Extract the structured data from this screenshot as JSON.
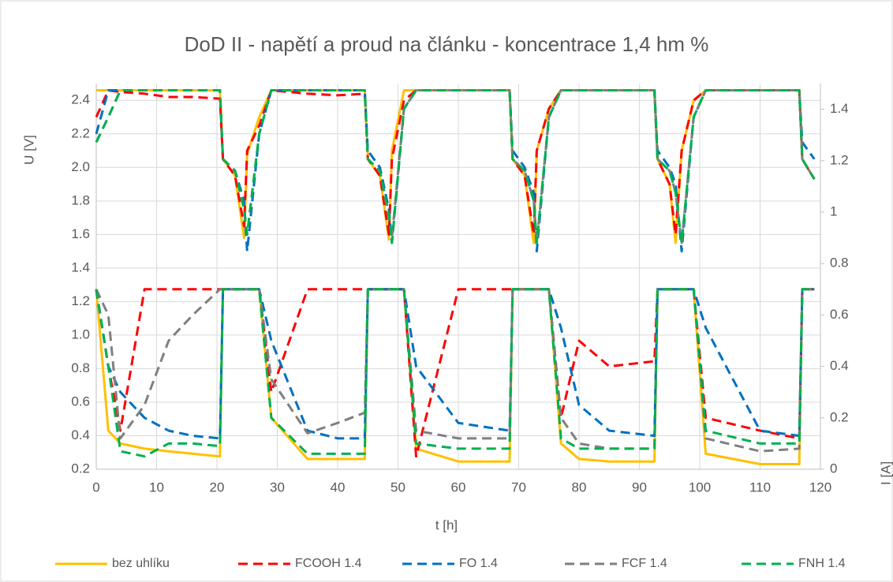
{
  "chart_data": {
    "type": "line",
    "title": "DoD II - napětí a proud na článku - koncentrace 1,4 hm %",
    "x_label": "t [h]",
    "y_label": "U [V]",
    "y2_label": "I [A]",
    "xlim": [
      0,
      120
    ],
    "xticks": [
      0,
      10,
      20,
      30,
      40,
      50,
      60,
      70,
      80,
      90,
      100,
      110,
      120
    ],
    "ylim": [
      0.2,
      2.5
    ],
    "yticks": [
      0.2,
      0.4,
      0.6,
      0.8,
      {
        "value": 1,
        "label": "1.0"
      },
      1.2,
      1.4,
      1.6,
      1.8,
      {
        "value": 2,
        "label": "2.0"
      },
      2.2,
      2.4
    ],
    "y2lim": [
      0,
      1.5
    ],
    "y2ticks": [
      0,
      0.2,
      0.4,
      0.6,
      0.8,
      1,
      1.2,
      1.4
    ],
    "grid": true,
    "legend": "bottom",
    "x": [
      0,
      2,
      4,
      8,
      12,
      16,
      20.5,
      21,
      23,
      24.5,
      25,
      27,
      29,
      35,
      40,
      44.5,
      45,
      47,
      48.5,
      49,
      51,
      53,
      60,
      68.5,
      69,
      71,
      72.5,
      73,
      75,
      77,
      80,
      85,
      92.5,
      93,
      95,
      96,
      97,
      99,
      101,
      110,
      116.5,
      117,
      119
    ],
    "series": [
      {
        "name": "bez uhlíku",
        "color": "#ffc000",
        "dashed": false,
        "values": [
          2.46,
          2.46,
          2.46,
          2.46,
          2.46,
          2.46,
          2.46,
          2.05,
          1.95,
          1.58,
          2.08,
          2.3,
          2.46,
          2.46,
          2.46,
          2.46,
          2.05,
          1.95,
          1.57,
          2.1,
          2.46,
          2.46,
          2.46,
          2.46,
          2.05,
          1.95,
          1.55,
          2.1,
          2.35,
          2.46,
          2.46,
          2.46,
          2.46,
          2.05,
          1.9,
          1.55,
          2.1,
          2.4,
          2.46,
          2.46,
          2.46,
          2.05,
          1.93
        ],
        "y2_values": [
          0.7,
          0.15,
          0.1,
          0.08,
          0.07,
          0.06,
          0.05,
          0.7,
          0.7,
          0.7,
          0.7,
          0.7,
          0.2,
          0.04,
          0.04,
          0.04,
          0.7,
          0.7,
          0.7,
          0.7,
          0.7,
          0.08,
          0.03,
          0.03,
          0.7,
          0.7,
          0.7,
          0.7,
          0.7,
          0.1,
          0.04,
          0.03,
          0.03,
          0.7,
          0.7,
          0.7,
          0.7,
          0.7,
          0.06,
          0.02,
          0.02,
          0.7,
          0.7
        ]
      },
      {
        "name": "FCOOH 1.4",
        "color": "#ff0000",
        "dashed": true,
        "values": [
          2.3,
          2.46,
          2.45,
          2.44,
          2.42,
          2.42,
          2.41,
          2.05,
          1.95,
          1.65,
          2.1,
          2.25,
          2.46,
          2.44,
          2.43,
          2.44,
          2.05,
          1.95,
          1.6,
          2.05,
          2.4,
          2.46,
          2.46,
          2.46,
          2.05,
          1.95,
          1.6,
          2.1,
          2.35,
          2.46,
          2.46,
          2.46,
          2.46,
          2.05,
          1.9,
          1.6,
          2.1,
          2.4,
          2.46,
          2.46,
          2.46,
          2.05,
          1.93
        ],
        "y2_values": [
          0.7,
          0.4,
          0.15,
          0.7,
          0.7,
          0.7,
          0.7,
          0.7,
          0.7,
          0.7,
          0.7,
          0.7,
          0.3,
          0.7,
          0.7,
          0.7,
          0.7,
          0.7,
          0.7,
          0.7,
          0.7,
          0.05,
          0.7,
          0.7,
          0.7,
          0.7,
          0.7,
          0.7,
          0.7,
          0.2,
          0.5,
          0.4,
          0.42,
          0.7,
          0.7,
          0.7,
          0.7,
          0.7,
          0.2,
          0.15,
          0.12,
          0.7,
          0.7
        ]
      },
      {
        "name": "FO 1.4",
        "color": "#0070c0",
        "dashed": true,
        "values": [
          2.2,
          2.46,
          2.46,
          2.46,
          2.46,
          2.46,
          2.46,
          2.05,
          1.98,
          1.8,
          1.5,
          2.2,
          2.46,
          2.46,
          2.46,
          2.46,
          2.1,
          2.0,
          1.75,
          1.55,
          2.35,
          2.46,
          2.46,
          2.46,
          2.1,
          2.0,
          1.85,
          1.5,
          2.3,
          2.46,
          2.46,
          2.46,
          2.46,
          2.1,
          2.0,
          1.9,
          1.5,
          2.3,
          2.46,
          2.46,
          2.46,
          2.15,
          2.05
        ],
        "y2_values": [
          0.7,
          0.4,
          0.3,
          0.2,
          0.15,
          0.13,
          0.12,
          0.7,
          0.7,
          0.7,
          0.7,
          0.7,
          0.5,
          0.15,
          0.12,
          0.12,
          0.7,
          0.7,
          0.7,
          0.7,
          0.7,
          0.4,
          0.18,
          0.15,
          0.7,
          0.7,
          0.7,
          0.7,
          0.7,
          0.55,
          0.25,
          0.15,
          0.13,
          0.7,
          0.7,
          0.7,
          0.7,
          0.7,
          0.55,
          0.15,
          0.13,
          0.7,
          0.7
        ]
      },
      {
        "name": "FCF 1.4",
        "color": "#7f7f7f",
        "dashed": true,
        "values": [
          2.15,
          2.3,
          2.46,
          2.46,
          2.46,
          2.46,
          2.46,
          2.05,
          1.98,
          1.75,
          1.6,
          2.2,
          2.46,
          2.46,
          2.46,
          2.46,
          2.05,
          1.98,
          1.7,
          1.58,
          2.35,
          2.46,
          2.46,
          2.46,
          2.05,
          1.98,
          1.8,
          1.55,
          2.3,
          2.46,
          2.46,
          2.46,
          2.46,
          2.05,
          1.98,
          1.85,
          1.55,
          2.3,
          2.46,
          2.46,
          2.46,
          2.05,
          1.93
        ],
        "y2_values": [
          0.7,
          0.6,
          0.12,
          0.25,
          0.5,
          0.6,
          0.7,
          0.7,
          0.7,
          0.7,
          0.7,
          0.7,
          0.35,
          0.14,
          0.18,
          0.22,
          0.7,
          0.7,
          0.7,
          0.7,
          0.7,
          0.15,
          0.12,
          0.12,
          0.7,
          0.7,
          0.7,
          0.7,
          0.7,
          0.2,
          0.1,
          0.08,
          0.08,
          0.7,
          0.7,
          0.7,
          0.7,
          0.7,
          0.12,
          0.07,
          0.08,
          0.7,
          0.7
        ]
      },
      {
        "name": "FNH 1.4",
        "color": "#00b050",
        "dashed": true,
        "values": [
          2.15,
          2.3,
          2.46,
          2.46,
          2.46,
          2.46,
          2.46,
          2.05,
          1.98,
          1.75,
          1.6,
          2.2,
          2.46,
          2.46,
          2.46,
          2.46,
          2.05,
          1.98,
          1.72,
          1.55,
          2.35,
          2.46,
          2.46,
          2.46,
          2.05,
          1.98,
          1.8,
          1.55,
          2.3,
          2.46,
          2.46,
          2.46,
          2.46,
          2.05,
          1.98,
          1.85,
          1.55,
          2.3,
          2.46,
          2.46,
          2.46,
          2.05,
          1.93
        ],
        "y2_values": [
          0.7,
          0.4,
          0.07,
          0.05,
          0.1,
          0.1,
          0.09,
          0.7,
          0.7,
          0.7,
          0.7,
          0.7,
          0.2,
          0.06,
          0.06,
          0.06,
          0.7,
          0.7,
          0.7,
          0.7,
          0.7,
          0.1,
          0.08,
          0.08,
          0.7,
          0.7,
          0.7,
          0.7,
          0.7,
          0.12,
          0.08,
          0.08,
          0.08,
          0.7,
          0.7,
          0.7,
          0.7,
          0.7,
          0.15,
          0.1,
          0.1,
          0.7,
          0.7
        ]
      }
    ]
  }
}
